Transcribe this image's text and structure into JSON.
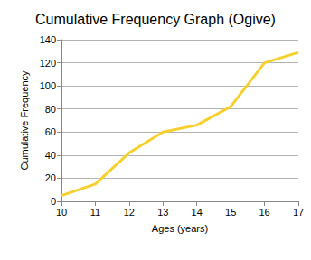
{
  "chart_data": {
    "type": "line",
    "title": "Cumulative Frequency Graph (Ogive)",
    "xlabel": "Ages (years)",
    "ylabel": "Cumulative Frequency",
    "x": [
      10,
      11,
      12,
      13,
      14,
      15,
      16,
      17
    ],
    "values": [
      5,
      15,
      42,
      60,
      66,
      82,
      120,
      129
    ],
    "color": "#f5d02e",
    "xlim": [
      10,
      17
    ],
    "xticks": [
      10,
      11,
      12,
      13,
      14,
      15,
      16,
      17
    ],
    "ylim": [
      0,
      140
    ],
    "yticks": [
      0,
      20,
      40,
      60,
      80,
      100,
      120,
      140
    ],
    "grid": true
  }
}
